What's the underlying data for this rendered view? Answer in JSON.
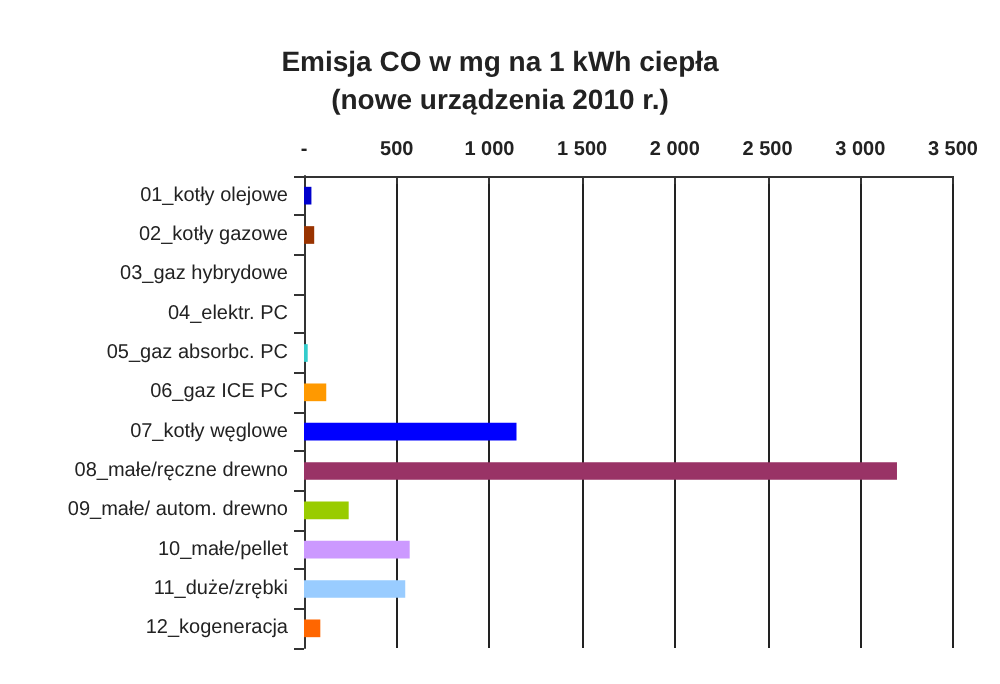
{
  "chart_data": {
    "type": "bar",
    "orientation": "horizontal",
    "title": "Emisja CO w mg na 1 kWh ciepła\n(nowe urządzenia 2010 r.)",
    "categories": [
      "01_kotły olejowe",
      "02_kotły gazowe",
      "03_gaz hybrydowe",
      "04_elektr. PC",
      "05_gaz absorbc. PC",
      "06_gaz ICE PC",
      "07_kotły węglowe",
      "08_małe/ręczne drewno",
      "09_małe/ autom. drewno",
      "10_małe/pellet",
      "11_duże/zrębki",
      "12_kogeneracja"
    ],
    "values": [
      40,
      55,
      0,
      0,
      20,
      120,
      1146,
      3198,
      241,
      570,
      546,
      88
    ],
    "colors": [
      "#0000cc",
      "#993300",
      "#999999",
      "#999999",
      "#33cccc",
      "#ff9900",
      "#0000ff",
      "#993366",
      "#99cc00",
      "#cc99ff",
      "#99ccff",
      "#ff6600"
    ],
    "xlim": [
      0,
      3500
    ],
    "xticks": [
      {
        "value": 0,
        "label": "-"
      },
      500,
      {
        "value": 1000,
        "label": "1 000"
      },
      {
        "value": 1500,
        "label": "1 500"
      },
      {
        "value": 2000,
        "label": "2 000"
      },
      {
        "value": 2500,
        "label": "2 500"
      },
      {
        "value": 3000,
        "label": "3 000"
      },
      {
        "value": 3500,
        "label": "3 500"
      }
    ],
    "grid": "x"
  }
}
